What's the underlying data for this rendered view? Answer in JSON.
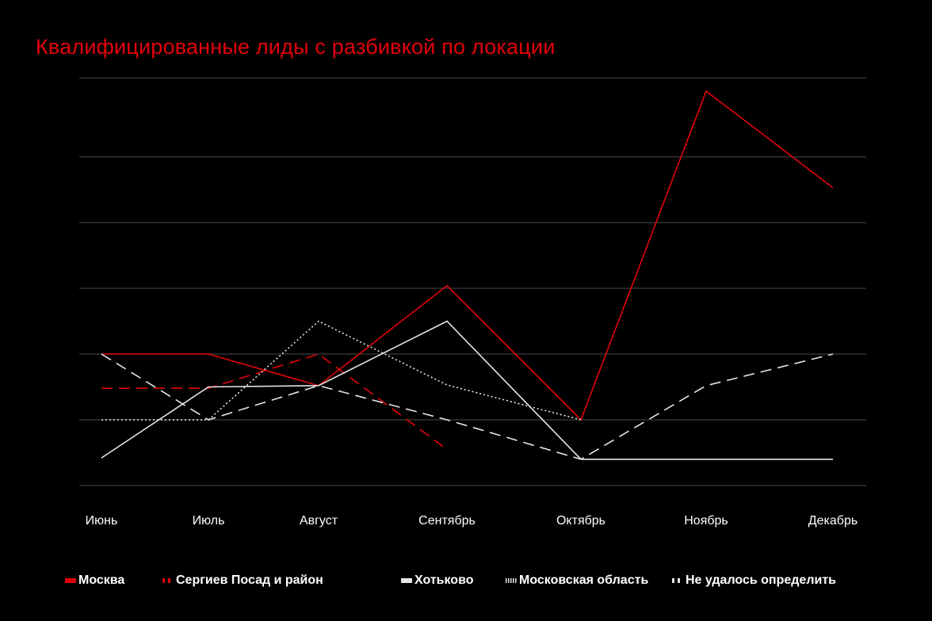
{
  "chart_data": {
    "type": "line",
    "title": "Квалифицированные лиды с разбивкой по локации",
    "xlabel": "",
    "ylabel": "",
    "ylim": [
      0,
      6.2
    ],
    "grid": true,
    "legend_position": "bottom",
    "categories": [
      "Июнь",
      "Июль",
      "Август",
      "Сентябрь",
      "Октябрь",
      "Ноябрь",
      "Декабрь"
    ],
    "series": [
      {
        "name": "Москва",
        "color": "#e3000b",
        "style": "solid",
        "values": [
          2.0,
          2.0,
          1.52,
          3.04,
          1.0,
          6.0,
          4.53
        ]
      },
      {
        "name": "Сергиев Посад и район",
        "color": "#e3000b",
        "style": "dashed",
        "values": [
          1.48,
          1.48,
          2.0,
          0.55,
          null,
          null,
          null
        ]
      },
      {
        "name": "Хотьково",
        "color": "#e6e6e6",
        "style": "solid",
        "values": [
          0.42,
          1.5,
          1.52,
          2.5,
          0.4,
          0.4,
          0.4
        ]
      },
      {
        "name": "Московская область",
        "color": "#e6e6e6",
        "style": "dotted",
        "values": [
          1.0,
          1.0,
          2.5,
          1.53,
          1.0,
          null,
          null
        ]
      },
      {
        "name": "Не удалось определить",
        "color": "#e6e6e6",
        "style": "dashed",
        "values": [
          2.0,
          1.0,
          1.52,
          1.0,
          0.4,
          1.52,
          2.0
        ]
      }
    ]
  }
}
